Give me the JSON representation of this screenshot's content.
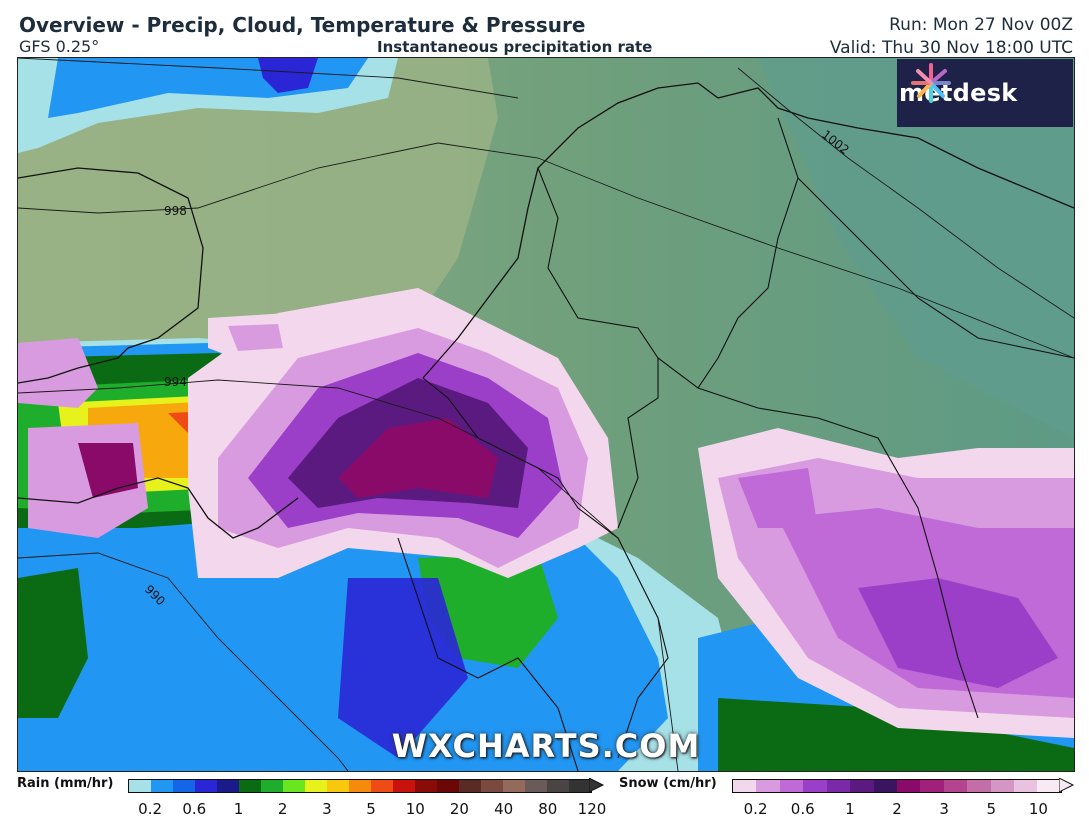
{
  "header": {
    "title": "Overview - Precip, Cloud, Temperature & Pressure",
    "model": "GFS 0.25°",
    "subtitle": "Instantaneous precipitation rate",
    "run": "Run: Mon 27 Nov 00Z",
    "valid": "Valid: Thu 30 Nov 18:00 UTC"
  },
  "logo": {
    "text": "metdesk"
  },
  "watermark": "WXCHARTS.COM",
  "isobars": [
    "998",
    "994",
    "990",
    "1002"
  ],
  "legend": {
    "rain": {
      "title": "Rain (mm/hr)",
      "colors": [
        "#a6e1e8",
        "#2196f3",
        "#1565e8",
        "#2a26d6",
        "#1a1a8a",
        "#0b6b14",
        "#1fae2c",
        "#69e61e",
        "#e7f21c",
        "#f7c80d",
        "#f68a0a",
        "#ef4b14",
        "#c9120e",
        "#8b0a0a",
        "#6b0707",
        "#5a2a24",
        "#7a4a3e",
        "#946a5c",
        "#6a5a58",
        "#4a4444",
        "#333333"
      ],
      "ticks": [
        "0.2",
        "0.6",
        "1",
        "2",
        "3",
        "5",
        "10",
        "20",
        "40",
        "80",
        "120"
      ]
    },
    "snow": {
      "title": "Snow (cm/hr)",
      "colors": [
        "#f3d7ec",
        "#d99be0",
        "#c06ad8",
        "#9b3fc8",
        "#7a2aa8",
        "#5a1a80",
        "#3a1460",
        "#8a0a6a",
        "#a0207a",
        "#b4448e",
        "#c36ea8",
        "#d596c4",
        "#e8c2de",
        "#f7eaf3"
      ],
      "ticks": [
        "0.2",
        "0.6",
        "1",
        "2",
        "3",
        "5",
        "10"
      ]
    }
  }
}
